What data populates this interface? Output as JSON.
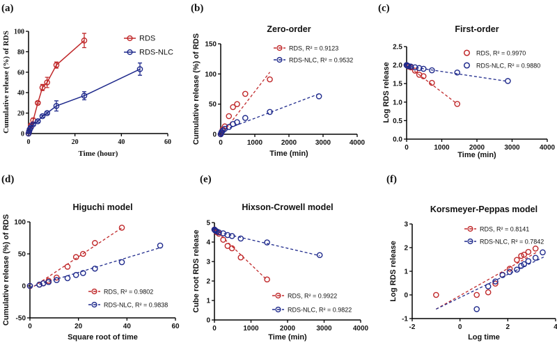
{
  "colors": {
    "RDS": "#c0282a",
    "RDS-NLC": "#1f2a8c"
  },
  "chart_data": [
    {
      "panel": "(a)",
      "type": "line",
      "title": "",
      "xlabel": "Time (hour)",
      "ylabel": "Cumulative release (%) of RDS",
      "xlim": [
        0,
        60
      ],
      "ylim": [
        0,
        100
      ],
      "xticks": [
        0,
        20,
        40,
        60
      ],
      "yticks": [
        0,
        20,
        40,
        60,
        80,
        100
      ],
      "legend": "top-right",
      "series": [
        {
          "name": "RDS",
          "legend_label": "RDS",
          "x": [
            0,
            0.25,
            0.5,
            1,
            2,
            4,
            6,
            8,
            12,
            24
          ],
          "y": [
            0,
            2,
            4,
            8,
            13,
            30,
            45,
            50,
            67,
            91
          ],
          "err": [
            0,
            1,
            1,
            1,
            2,
            1,
            3,
            5,
            3,
            7
          ]
        },
        {
          "name": "RDS-NLC",
          "legend_label": "RDS-NLC",
          "x": [
            0,
            0.25,
            0.5,
            1,
            2,
            4,
            6,
            8,
            12,
            24,
            48
          ],
          "y": [
            0,
            2,
            4,
            6,
            9,
            12,
            17,
            20,
            27,
            37,
            63
          ],
          "err": [
            0,
            1,
            1,
            1,
            1,
            1,
            1,
            1,
            5,
            4,
            6
          ]
        }
      ]
    },
    {
      "panel": "(b)",
      "type": "scatter",
      "title": "Zero-order",
      "xlabel": "Time (min)",
      "ylabel": "Cumulative release (%) of RDS",
      "xlim": [
        0,
        4000
      ],
      "ylim": [
        0,
        150
      ],
      "xticks": [
        0,
        1000,
        2000,
        3000,
        4000
      ],
      "yticks": [
        0,
        50,
        100,
        150
      ],
      "legend": "top-right",
      "series": [
        {
          "name": "RDS",
          "legend_label": "RDS, R² = 0.9123",
          "r2": 0.9123,
          "x": [
            0,
            15,
            30,
            60,
            120,
            240,
            360,
            480,
            720,
            1440
          ],
          "y": [
            0,
            2,
            4,
            8,
            13,
            30,
            45,
            50,
            67,
            91
          ],
          "fit": [
            [
              0,
              -2
            ],
            [
              1440,
              103
            ]
          ]
        },
        {
          "name": "RDS-NLC",
          "legend_label": "RDS-NLC, R² = 0.9532",
          "r2": 0.9532,
          "x": [
            0,
            15,
            30,
            60,
            120,
            240,
            360,
            480,
            720,
            1440,
            2880
          ],
          "y": [
            0,
            2,
            4,
            6,
            9,
            12,
            17,
            20,
            27,
            37,
            63
          ],
          "fit": [
            [
              0,
              5
            ],
            [
              2880,
              67
            ]
          ]
        }
      ]
    },
    {
      "panel": "(c)",
      "type": "scatter",
      "title": "First-order",
      "xlabel": "Time (min)",
      "ylabel": "Log RDS release",
      "xlim": [
        0,
        4000
      ],
      "ylim": [
        0,
        2.5
      ],
      "xticks": [
        0,
        1000,
        2000,
        3000,
        4000
      ],
      "yticks": [
        0.0,
        0.5,
        1.0,
        1.5,
        2.0,
        2.5
      ],
      "ytick_decimals": 1,
      "legend": "top-right",
      "series": [
        {
          "name": "RDS",
          "legend_label": "RDS, R² = 0.9970",
          "r2": 0.997,
          "x": [
            0,
            15,
            30,
            60,
            120,
            240,
            360,
            480,
            720,
            1440
          ],
          "y": [
            2.0,
            1.99,
            1.98,
            1.96,
            1.94,
            1.85,
            1.74,
            1.7,
            1.52,
            0.95
          ],
          "fit": [
            [
              0,
              2.0
            ],
            [
              1440,
              0.95
            ]
          ]
        },
        {
          "name": "RDS-NLC",
          "legend_label": "RDS-NLC, R² = 0.9880",
          "r2": 0.988,
          "x": [
            0,
            15,
            30,
            60,
            120,
            240,
            360,
            480,
            720,
            1440,
            2880
          ],
          "y": [
            2.0,
            1.99,
            1.98,
            1.97,
            1.96,
            1.94,
            1.92,
            1.9,
            1.86,
            1.8,
            1.57
          ],
          "fit": [
            [
              0,
              1.97
            ],
            [
              2880,
              1.56
            ]
          ]
        }
      ]
    },
    {
      "panel": "(d)",
      "type": "scatter",
      "title": "Higuchi model",
      "xlabel": "Square root of time",
      "ylabel": "Cumulative release (%) of RDS",
      "xlim": [
        0,
        60
      ],
      "ylim": [
        -50,
        100
      ],
      "xticks": [
        0,
        20,
        40,
        60
      ],
      "yticks": [
        -50,
        0,
        50,
        100
      ],
      "legend": "bottom-right",
      "series": [
        {
          "name": "RDS",
          "legend_label": "RDS, R² = 0.9802",
          "r2": 0.9802,
          "x": [
            0,
            3.9,
            5.5,
            7.7,
            11,
            15.5,
            19,
            21.9,
            26.8,
            37.9
          ],
          "y": [
            0,
            2,
            4,
            8,
            13,
            30,
            45,
            50,
            67,
            91
          ],
          "fit": [
            [
              0,
              -5
            ],
            [
              38,
              91
            ]
          ]
        },
        {
          "name": "RDS-NLC",
          "legend_label": "RDS-NLC, R² = 0.9838",
          "r2": 0.9838,
          "x": [
            0,
            3.9,
            5.5,
            7.7,
            11,
            15.5,
            19,
            21.9,
            26.8,
            37.9,
            53.7
          ],
          "y": [
            0,
            2,
            4,
            6,
            9,
            12,
            17,
            20,
            27,
            37,
            63
          ],
          "fit": [
            [
              0,
              -2
            ],
            [
              54,
              60
            ]
          ]
        }
      ]
    },
    {
      "panel": "(e)",
      "type": "scatter",
      "title": "Hixson-Crowell model",
      "xlabel": "Time (min)",
      "ylabel": "Cube root RDS release",
      "xlim": [
        0,
        4000
      ],
      "ylim": [
        0,
        5
      ],
      "xticks": [
        0,
        1000,
        2000,
        3000,
        4000
      ],
      "yticks": [
        0,
        1,
        2,
        3,
        4,
        5
      ],
      "legend": "bottom-right",
      "series": [
        {
          "name": "RDS",
          "legend_label": "RDS, R² = 0.9922",
          "r2": 0.9922,
          "x": [
            0,
            15,
            30,
            60,
            120,
            240,
            360,
            480,
            720,
            1440
          ],
          "y": [
            4.64,
            4.61,
            4.58,
            4.51,
            4.43,
            4.12,
            3.8,
            3.68,
            3.21,
            2.08
          ],
          "fit": [
            [
              0,
              4.65
            ],
            [
              1440,
              2.05
            ]
          ]
        },
        {
          "name": "RDS-NLC",
          "legend_label": "RDS-NLC, R² = 0.9822",
          "r2": 0.9822,
          "x": [
            0,
            15,
            30,
            60,
            120,
            240,
            360,
            480,
            720,
            1440,
            2880
          ],
          "y": [
            4.64,
            4.61,
            4.58,
            4.55,
            4.5,
            4.45,
            4.36,
            4.31,
            4.18,
            3.98,
            3.33
          ],
          "fit": [
            [
              0,
              4.55
            ],
            [
              2880,
              3.3
            ]
          ]
        }
      ]
    },
    {
      "panel": "(f)",
      "type": "scatter",
      "title": "Korsmeyer-Peppas model",
      "xlabel": "Log time",
      "ylabel": "Log RDS release",
      "xlim": [
        -2,
        4
      ],
      "ylim": [
        -1,
        3
      ],
      "xticks": [
        -2,
        0,
        2,
        4
      ],
      "yticks": [
        -1,
        0,
        1,
        2,
        3
      ],
      "legend": "top-right",
      "series": [
        {
          "name": "RDS",
          "legend_label": "RDS, R² = 0.8141",
          "r2": 0.8141,
          "x": [
            -1,
            0.7,
            1.18,
            1.48,
            1.78,
            2.08,
            2.38,
            2.56,
            2.68,
            2.86,
            3.16
          ],
          "y": [
            0,
            0,
            0.11,
            0.48,
            0.85,
            1.11,
            1.48,
            1.65,
            1.7,
            1.82,
            1.96
          ],
          "fit": [
            [
              -1,
              -0.6
            ],
            [
              3.2,
              1.8
            ]
          ]
        },
        {
          "name": "RDS-NLC",
          "legend_label": "RDS-NLC, R² = 0.7842",
          "r2": 0.7842,
          "x": [
            0.7,
            1.18,
            1.48,
            1.78,
            2.08,
            2.38,
            2.56,
            2.68,
            2.86,
            3.16,
            3.46
          ],
          "y": [
            -0.6,
            0.36,
            0.57,
            0.84,
            0.97,
            1.07,
            1.23,
            1.3,
            1.43,
            1.57,
            1.8
          ],
          "fit": [
            [
              -1,
              -0.6
            ],
            [
              3.5,
              1.6
            ]
          ]
        }
      ]
    }
  ]
}
